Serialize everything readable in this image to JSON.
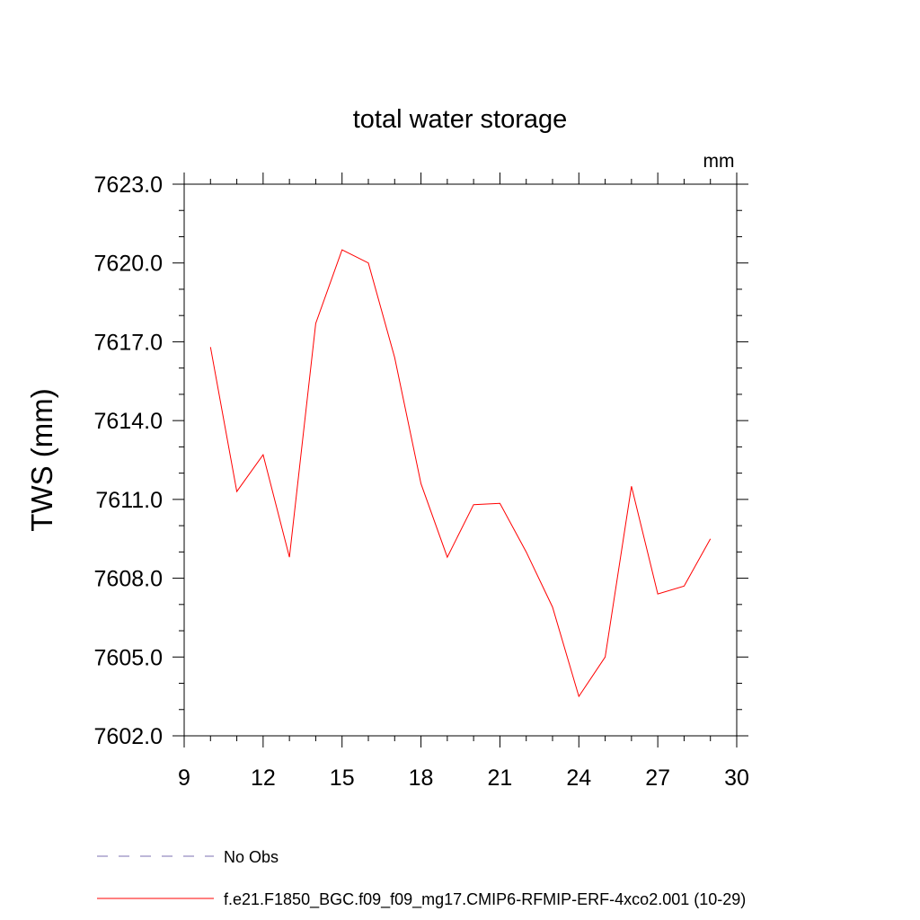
{
  "chart_data": {
    "type": "line",
    "title": "total water storage",
    "units_label": "mm",
    "xlabel": "",
    "ylabel": "TWS  (mm)",
    "xlim": [
      9,
      30
    ],
    "ylim": [
      7602.0,
      7623.0
    ],
    "xticks": [
      9,
      12,
      15,
      18,
      21,
      24,
      27,
      30
    ],
    "xtick_labels": [
      "9",
      "12",
      "15",
      "18",
      "21",
      "24",
      "27",
      "30"
    ],
    "yticks": [
      7602.0,
      7605.0,
      7608.0,
      7611.0,
      7614.0,
      7617.0,
      7620.0,
      7623.0
    ],
    "ytick_labels": [
      "7602.0",
      "7605.0",
      "7608.0",
      "7611.0",
      "7614.0",
      "7617.0",
      "7620.0",
      "7623.0"
    ],
    "grid": false,
    "series": [
      {
        "name": "f.e21.F1850_BGC.f09_f09_mg17.CMIP6-RFMIP-ERF-4xco2.001 (10-29)",
        "color": "#ff0000",
        "x": [
          10,
          11,
          12,
          13,
          14,
          15,
          16,
          17,
          18,
          19,
          20,
          21,
          22,
          23,
          24,
          25,
          26,
          27,
          28,
          29
        ],
        "values": [
          7616.8,
          7611.3,
          7612.7,
          7608.8,
          7617.7,
          7620.5,
          7620.0,
          7616.4,
          7611.6,
          7608.8,
          7610.8,
          7610.85,
          7609.0,
          7606.9,
          7603.5,
          7605.0,
          7611.5,
          7607.4,
          7607.7,
          7609.5
        ]
      }
    ],
    "legend": {
      "placement": "bottom",
      "entries": [
        {
          "label": "No Obs",
          "color": "#7b6fb0",
          "style": "dashed"
        },
        {
          "label": "f.e21.F1850_BGC.f09_f09_mg17.CMIP6-RFMIP-ERF-4xco2.001 (10-29)",
          "color": "#ff0000",
          "style": "solid"
        }
      ]
    }
  }
}
